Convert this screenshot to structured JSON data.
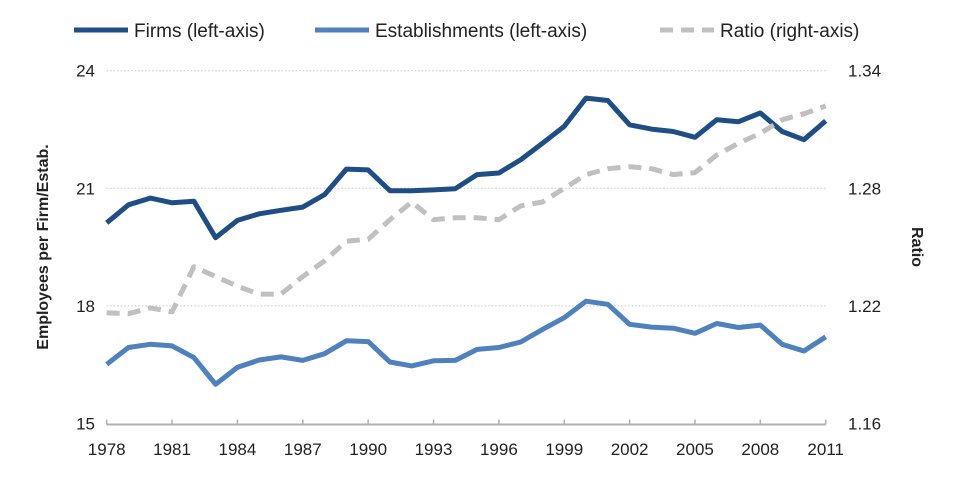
{
  "chart_data": {
    "type": "line",
    "title": "",
    "xlabel": "",
    "ylabel": "Employees per Firm/Estab.",
    "y2label": "Ratio",
    "ylim": [
      15,
      24
    ],
    "y2lim": [
      1.16,
      1.34
    ],
    "yticks": [
      "15",
      "18",
      "21",
      "24"
    ],
    "y2ticks": [
      "1.16",
      "1.22",
      "1.28",
      "1.34"
    ],
    "xticks": [
      "1978",
      "1981",
      "1984",
      "1987",
      "1990",
      "1993",
      "1996",
      "1999",
      "2002",
      "2005",
      "2008",
      "2011"
    ],
    "grid": "horizontal dotted",
    "legend_position": "top",
    "x": [
      1978,
      1979,
      1980,
      1981,
      1982,
      1983,
      1984,
      1985,
      1986,
      1987,
      1988,
      1989,
      1990,
      1991,
      1992,
      1993,
      1994,
      1995,
      1996,
      1997,
      1998,
      1999,
      2000,
      2001,
      2002,
      2003,
      2004,
      2005,
      2006,
      2007,
      2008,
      2009,
      2010,
      2011
    ],
    "series": [
      {
        "name": "Firms (left-axis)",
        "axis": "left",
        "color": "#1f4e85",
        "style": "solid",
        "values": [
          20.12,
          20.58,
          20.75,
          20.63,
          20.67,
          19.74,
          20.18,
          20.35,
          20.44,
          20.52,
          20.84,
          21.49,
          21.47,
          20.94,
          20.94,
          20.96,
          20.99,
          21.35,
          21.39,
          21.73,
          22.15,
          22.58,
          23.3,
          23.24,
          22.62,
          22.51,
          22.45,
          22.3,
          22.75,
          22.7,
          22.92,
          22.45,
          22.24,
          22.72
        ]
      },
      {
        "name": "Establishments (left-axis)",
        "axis": "left",
        "color": "#4f81bd",
        "style": "solid",
        "values": [
          16.51,
          16.94,
          17.02,
          16.98,
          16.68,
          16.0,
          16.43,
          16.62,
          16.7,
          16.61,
          16.78,
          17.11,
          17.09,
          16.57,
          16.47,
          16.6,
          16.61,
          16.89,
          16.94,
          17.08,
          17.4,
          17.7,
          18.12,
          18.04,
          17.53,
          17.46,
          17.43,
          17.3,
          17.55,
          17.45,
          17.51,
          17.02,
          16.85,
          17.21
        ]
      },
      {
        "name": "Ratio (right-axis)",
        "axis": "right",
        "color": "#c0c0c0",
        "style": "dashed",
        "values": [
          1.2165,
          1.216,
          1.219,
          1.217,
          1.24,
          1.235,
          1.23,
          1.226,
          1.226,
          1.235,
          1.243,
          1.253,
          1.254,
          1.264,
          1.273,
          1.264,
          1.265,
          1.265,
          1.264,
          1.271,
          1.273,
          1.28,
          1.287,
          1.29,
          1.291,
          1.29,
          1.287,
          1.288,
          1.297,
          1.303,
          1.308,
          1.315,
          1.318,
          1.322
        ]
      }
    ]
  }
}
